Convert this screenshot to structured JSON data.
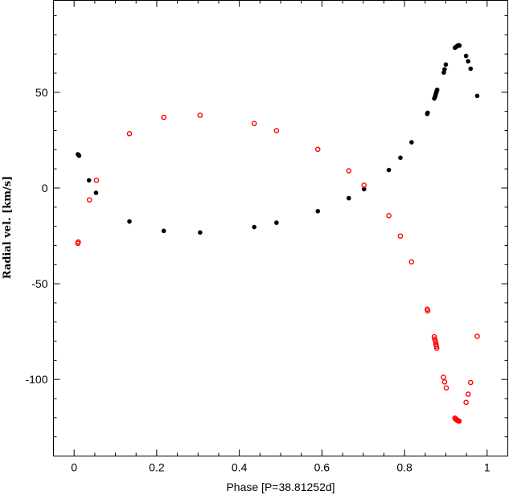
{
  "chart_data": {
    "type": "scatter",
    "title": "",
    "xlabel": "Phase [P=38.81252d]",
    "ylabel": "Radial vel. [km/s]",
    "xlim": [
      -0.05,
      1.05
    ],
    "ylim": [
      -140,
      98
    ],
    "x_ticks": [
      {
        "value": 0,
        "label": "0"
      },
      {
        "value": 0.2,
        "label": "0.2"
      },
      {
        "value": 0.4,
        "label": "0.4"
      },
      {
        "value": 0.6,
        "label": "0.6"
      },
      {
        "value": 0.8,
        "label": "0.8"
      },
      {
        "value": 1,
        "label": "1"
      }
    ],
    "y_ticks": [
      {
        "value": -100,
        "label": "-100"
      },
      {
        "value": -50,
        "label": "-50"
      },
      {
        "value": 0,
        "label": "0"
      },
      {
        "value": 50,
        "label": "50"
      }
    ],
    "grid": false,
    "series": [
      {
        "marker": "filled-circle",
        "color": "#000000",
        "points": [
          [
            0.009,
            17.6
          ],
          [
            0.011,
            17.2
          ],
          [
            0.012,
            16.9
          ],
          [
            0.036,
            4.0
          ],
          [
            0.053,
            -2.5
          ],
          [
            0.134,
            -17.5
          ],
          [
            0.217,
            -22.4
          ],
          [
            0.305,
            -23.2
          ],
          [
            0.436,
            -20.4
          ],
          [
            0.49,
            -18.1
          ],
          [
            0.59,
            -12.1
          ],
          [
            0.665,
            -5.3
          ],
          [
            0.702,
            -0.6
          ],
          [
            0.762,
            9.4
          ],
          [
            0.79,
            15.8
          ],
          [
            0.817,
            23.9
          ],
          [
            0.855,
            38.7
          ],
          [
            0.856,
            39.3
          ],
          [
            0.872,
            46.8
          ],
          [
            0.874,
            47.6
          ],
          [
            0.875,
            48.6
          ],
          [
            0.876,
            49.4
          ],
          [
            0.877,
            50.0
          ],
          [
            0.878,
            50.7
          ],
          [
            0.879,
            51.3
          ],
          [
            0.895,
            60.3
          ],
          [
            0.897,
            62.0
          ],
          [
            0.9,
            64.5
          ],
          [
            0.922,
            73.3
          ],
          [
            0.925,
            73.7
          ],
          [
            0.927,
            74.1
          ],
          [
            0.929,
            74.4
          ],
          [
            0.931,
            74.6
          ],
          [
            0.933,
            74.4
          ],
          [
            0.949,
            69.0
          ],
          [
            0.954,
            66.2
          ],
          [
            0.96,
            62.3
          ],
          [
            0.976,
            48.1
          ]
        ]
      },
      {
        "marker": "open-circle",
        "color": "#ff0000",
        "points": [
          [
            0.009,
            -28.9
          ],
          [
            0.01,
            -28.2
          ],
          [
            0.037,
            -6.2
          ],
          [
            0.054,
            4.0
          ],
          [
            0.134,
            28.4
          ],
          [
            0.217,
            36.9
          ],
          [
            0.305,
            38.0
          ],
          [
            0.436,
            33.7
          ],
          [
            0.49,
            30.0
          ],
          [
            0.59,
            20.2
          ],
          [
            0.665,
            9.0
          ],
          [
            0.702,
            1.5
          ],
          [
            0.762,
            -14.4
          ],
          [
            0.79,
            -25.1
          ],
          [
            0.817,
            -38.6
          ],
          [
            0.855,
            -63.3
          ],
          [
            0.856,
            -64.2
          ],
          [
            0.872,
            -77.7
          ],
          [
            0.873,
            -78.9
          ],
          [
            0.875,
            -80.1
          ],
          [
            0.876,
            -81.5
          ],
          [
            0.877,
            -82.6
          ],
          [
            0.878,
            -83.7
          ],
          [
            0.894,
            -98.9
          ],
          [
            0.897,
            -101.3
          ],
          [
            0.901,
            -104.4
          ],
          [
            0.922,
            -120.2
          ],
          [
            0.924,
            -120.7
          ],
          [
            0.926,
            -121.0
          ],
          [
            0.928,
            -121.4
          ],
          [
            0.93,
            -121.6
          ],
          [
            0.932,
            -121.8
          ],
          [
            0.949,
            -112.0
          ],
          [
            0.954,
            -107.7
          ],
          [
            0.96,
            -101.6
          ],
          [
            0.976,
            -77.5
          ]
        ]
      }
    ]
  }
}
